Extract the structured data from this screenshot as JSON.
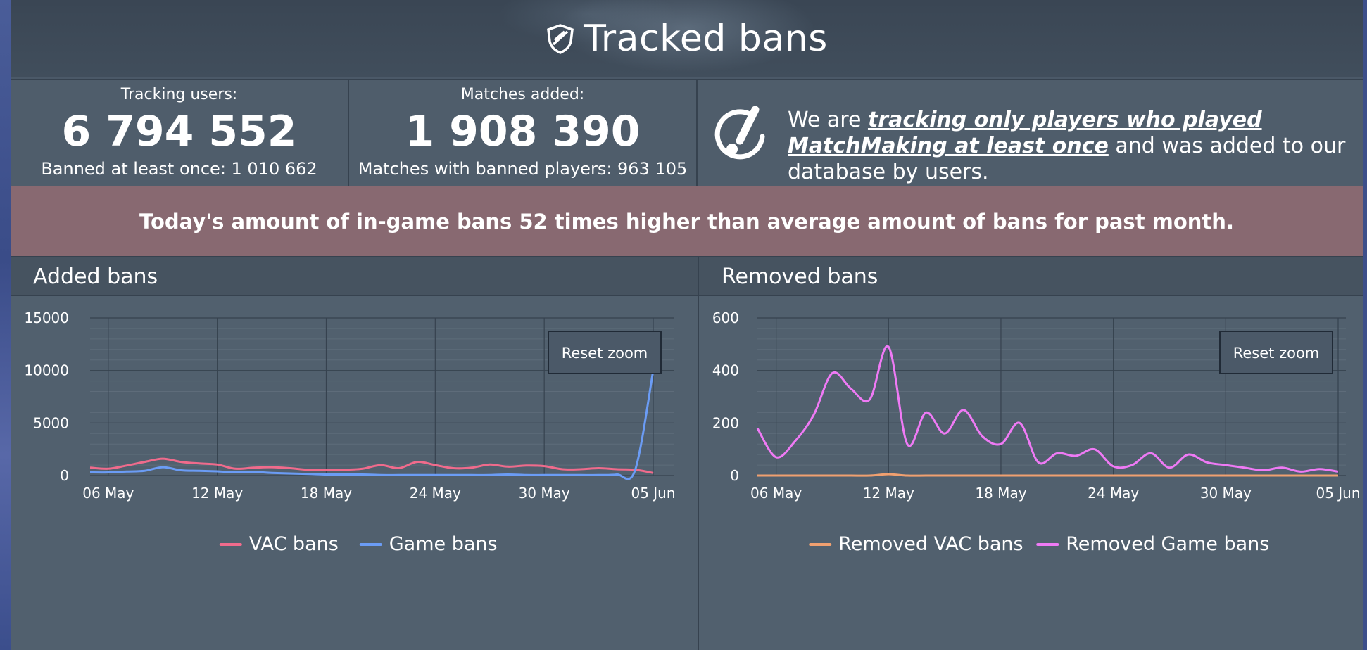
{
  "header": {
    "title": "Tracked bans",
    "icon": "shield-icon"
  },
  "stats": [
    {
      "label": "Tracking users:",
      "value": "6 794 552",
      "sub_label": "Banned at least once: 1 010 662"
    },
    {
      "label": "Matches added:",
      "value": "1 908 390",
      "sub_label": "Matches with banned players: 963 105"
    }
  ],
  "notice": {
    "icon": "alert-check-icon",
    "pre": "We are ",
    "emphasis": "tracking only players who played MatchMaking at least once",
    "post": " and was added to our database by users."
  },
  "alert": {
    "text": "Today's amount of in-game bans 52 times higher than average amount of bans for past month."
  },
  "colors": {
    "vac": "#f06b8c",
    "game": "#6b9cf5",
    "removed_vac": "#f0a070",
    "removed_game": "#ef7af5"
  },
  "chart_data": [
    {
      "type": "line",
      "title": "Added bans",
      "reset_label": "Reset zoom",
      "x": [
        "05 May",
        "06 May",
        "07 May",
        "08 May",
        "09 May",
        "10 May",
        "11 May",
        "12 May",
        "13 May",
        "14 May",
        "15 May",
        "16 May",
        "17 May",
        "18 May",
        "19 May",
        "20 May",
        "21 May",
        "22 May",
        "23 May",
        "24 May",
        "25 May",
        "26 May",
        "27 May",
        "28 May",
        "29 May",
        "30 May",
        "31 May",
        "01 Jun",
        "02 Jun",
        "03 Jun",
        "04 Jun",
        "05 Jun"
      ],
      "x_ticks": [
        "06 May",
        "12 May",
        "18 May",
        "24 May",
        "30 May",
        "05 Jun"
      ],
      "ylim": [
        0,
        15000
      ],
      "y_ticks": [
        0,
        5000,
        10000,
        15000
      ],
      "series": [
        {
          "name": "VAC bans",
          "values": [
            750,
            650,
            950,
            1300,
            1600,
            1300,
            1150,
            1050,
            650,
            750,
            800,
            700,
            550,
            500,
            550,
            650,
            1000,
            700,
            1300,
            1000,
            700,
            750,
            1050,
            850,
            950,
            900,
            600,
            600,
            700,
            600,
            550,
            250
          ]
        },
        {
          "name": "Game bans",
          "values": [
            300,
            300,
            380,
            450,
            800,
            500,
            450,
            400,
            300,
            350,
            250,
            200,
            150,
            100,
            100,
            100,
            50,
            50,
            50,
            50,
            50,
            50,
            50,
            100,
            50,
            50,
            50,
            50,
            50,
            100,
            500,
            10000
          ]
        }
      ],
      "legend": "bottom"
    },
    {
      "type": "line",
      "title": "Removed bans",
      "reset_label": "Reset zoom",
      "x": [
        "05 May",
        "06 May",
        "07 May",
        "08 May",
        "09 May",
        "10 May",
        "11 May",
        "12 May",
        "13 May",
        "14 May",
        "15 May",
        "16 May",
        "17 May",
        "18 May",
        "19 May",
        "20 May",
        "21 May",
        "22 May",
        "23 May",
        "24 May",
        "25 May",
        "26 May",
        "27 May",
        "28 May",
        "29 May",
        "30 May",
        "31 May",
        "01 Jun",
        "02 Jun",
        "03 Jun",
        "04 Jun",
        "05 Jun"
      ],
      "x_ticks": [
        "06 May",
        "12 May",
        "18 May",
        "24 May",
        "30 May",
        "05 Jun"
      ],
      "ylim": [
        0,
        600
      ],
      "y_ticks": [
        0,
        200,
        400,
        600
      ],
      "series": [
        {
          "name": "Removed VAC bans",
          "values": [
            0,
            0,
            0,
            0,
            0,
            0,
            0,
            5,
            0,
            0,
            0,
            0,
            0,
            0,
            0,
            0,
            0,
            0,
            0,
            0,
            0,
            0,
            0,
            0,
            0,
            0,
            0,
            0,
            0,
            0,
            0,
            0
          ]
        },
        {
          "name": "Removed Game bans",
          "values": [
            180,
            70,
            130,
            230,
            390,
            330,
            290,
            490,
            120,
            240,
            160,
            250,
            150,
            120,
            200,
            50,
            85,
            75,
            100,
            35,
            40,
            85,
            30,
            80,
            50,
            40,
            30,
            20,
            30,
            15,
            25,
            15
          ]
        }
      ],
      "legend": "bottom"
    }
  ]
}
